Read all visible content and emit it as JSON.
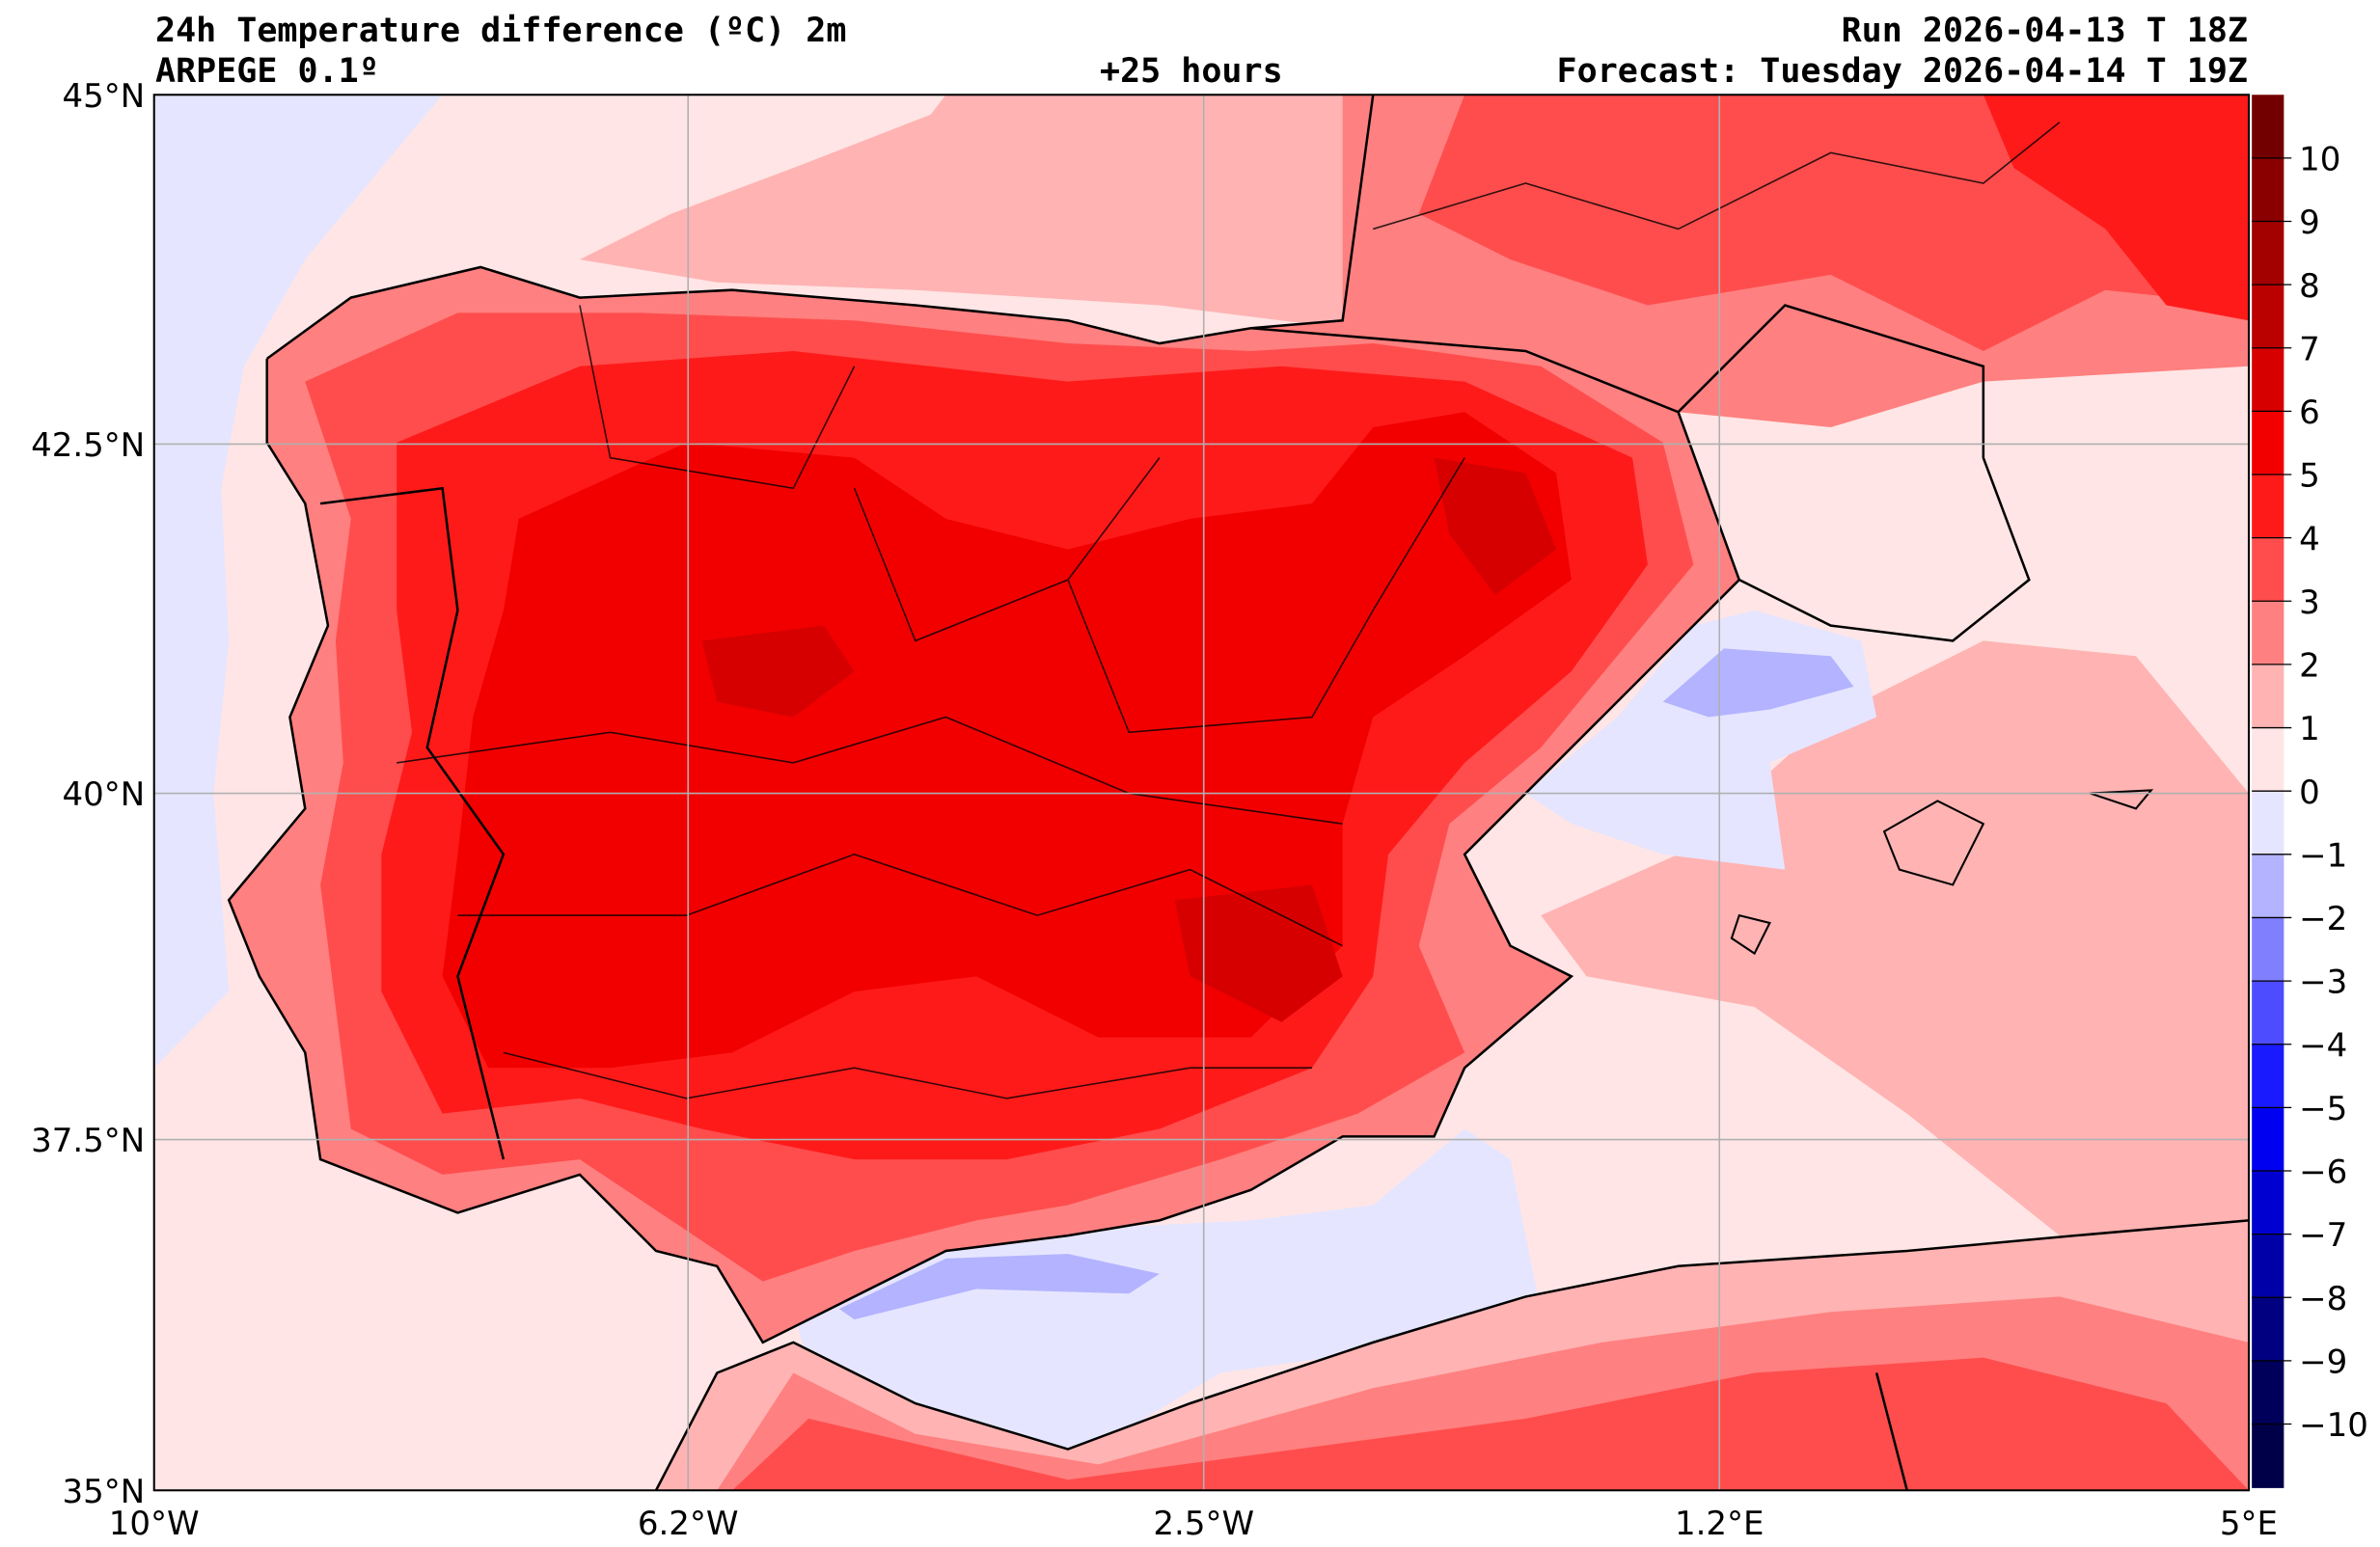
{
  "header": {
    "title": "24h Temperature difference (ºC) 2m",
    "model": "ARPEGE 0.1º",
    "lead_time": "+25 hours",
    "run": "Run 2026-04-13 T 18Z",
    "forecast": "Forecast: Tuesday 2026-04-14 T 19Z"
  },
  "axes": {
    "lat_labels": [
      "45°N",
      "42.5°N",
      "40°N",
      "37.5°N",
      "35°N"
    ],
    "lon_labels": [
      "10°W",
      "6.2°W",
      "2.5°W",
      "1.2°E",
      "5°E"
    ]
  },
  "colorbar": {
    "labels": [
      "10",
      "9",
      "8",
      "7",
      "6",
      "5",
      "4",
      "3",
      "2",
      "1",
      "0",
      "−1",
      "−2",
      "−3",
      "−4",
      "−5",
      "−6",
      "−7",
      "−8",
      "−9",
      "−10"
    ],
    "colors": [
      "#730000",
      "#8a0000",
      "#a30000",
      "#bb0000",
      "#d60000",
      "#f20000",
      "#ff1a1a",
      "#ff4d4d",
      "#ff8080",
      "#ffb3b3",
      "#ffe5e5",
      "#e5e5ff",
      "#b3b3ff",
      "#8080ff",
      "#4d4dff",
      "#1a1aff",
      "#0000f0",
      "#0000d0",
      "#0000a8",
      "#000080",
      "#00005a",
      "#000048"
    ]
  }
}
